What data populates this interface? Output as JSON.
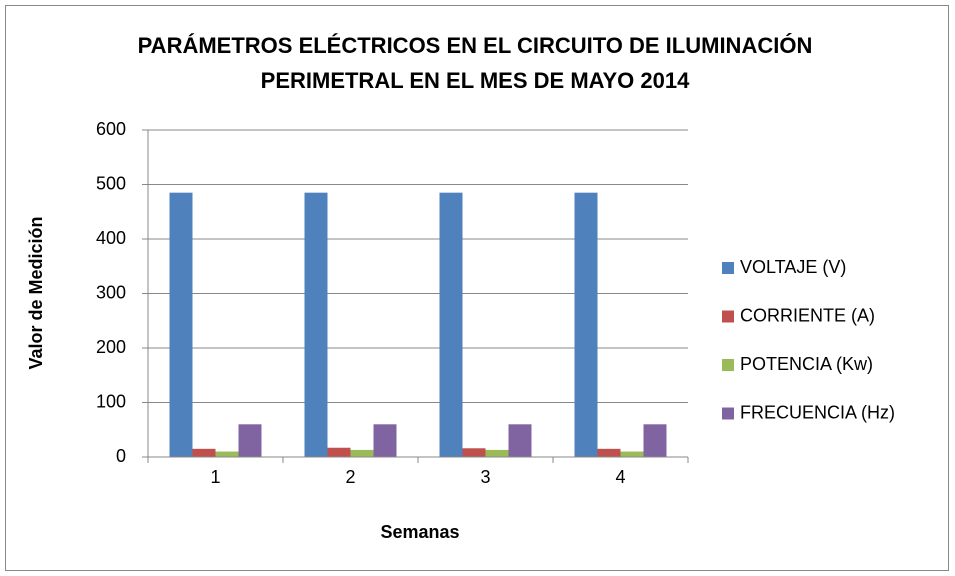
{
  "chart_data": {
    "type": "bar",
    "title": [
      "PARÁMETROS ELÉCTRICOS EN EL CIRCUITO DE ILUMINACIÓN",
      "PERIMETRAL EN EL MES DE MAYO 2014"
    ],
    "x_label": "Semanas",
    "y_label": "Valor de Medición",
    "categories": [
      "1",
      "2",
      "3",
      "4"
    ],
    "series": [
      {
        "name": "VOLTAJE (V)",
        "color": "#4f81bd",
        "values": [
          485,
          485,
          485,
          485
        ]
      },
      {
        "name": "CORRIENTE (A)",
        "color": "#c0504d",
        "values": [
          15,
          17,
          16,
          15
        ]
      },
      {
        "name": "POTENCIA (Kw)",
        "color": "#9bbb59",
        "values": [
          10,
          13,
          13,
          10
        ]
      },
      {
        "name": "FRECUENCIA (Hz)",
        "color": "#8064a2",
        "values": [
          60,
          60,
          60,
          60
        ]
      }
    ],
    "ylim": [
      0,
      600
    ],
    "yticks": [
      0,
      100,
      200,
      300,
      400,
      500,
      600
    ],
    "grid": true,
    "legend": "right"
  }
}
